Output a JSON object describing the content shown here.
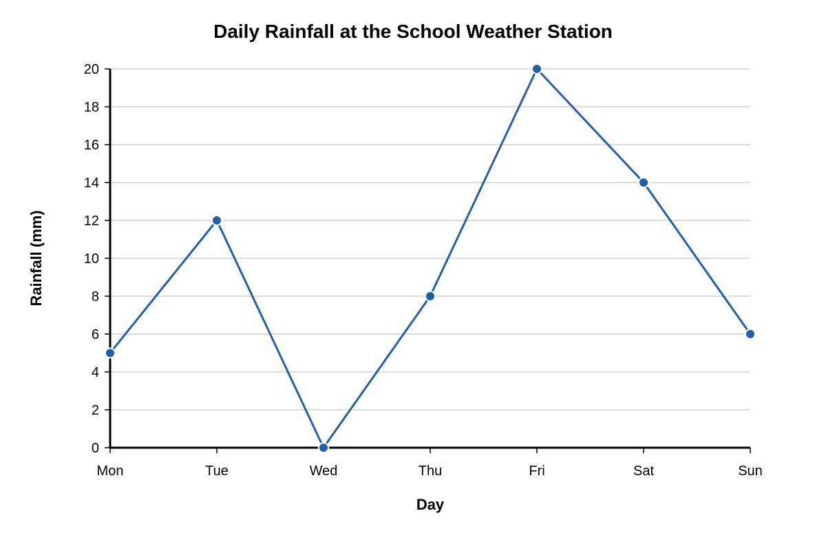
{
  "chart_data": {
    "type": "line",
    "title": "Daily Rainfall at the School Weather Station",
    "xlabel": "Day",
    "ylabel": "Rainfall (mm)",
    "categories": [
      "Mon",
      "Tue",
      "Wed",
      "Thu",
      "Fri",
      "Sat",
      "Sun"
    ],
    "series": [
      {
        "values": [
          5,
          12,
          0,
          8,
          20,
          14,
          6
        ]
      }
    ],
    "ylim": [
      0,
      20
    ],
    "yticks": [
      0,
      2,
      4,
      6,
      8,
      10,
      12,
      14,
      16,
      18,
      20
    ],
    "grid": true,
    "legend": "none",
    "colors": {
      "series": "#2160a8",
      "grid": "#d0d0d0",
      "axis": "#000000"
    }
  }
}
